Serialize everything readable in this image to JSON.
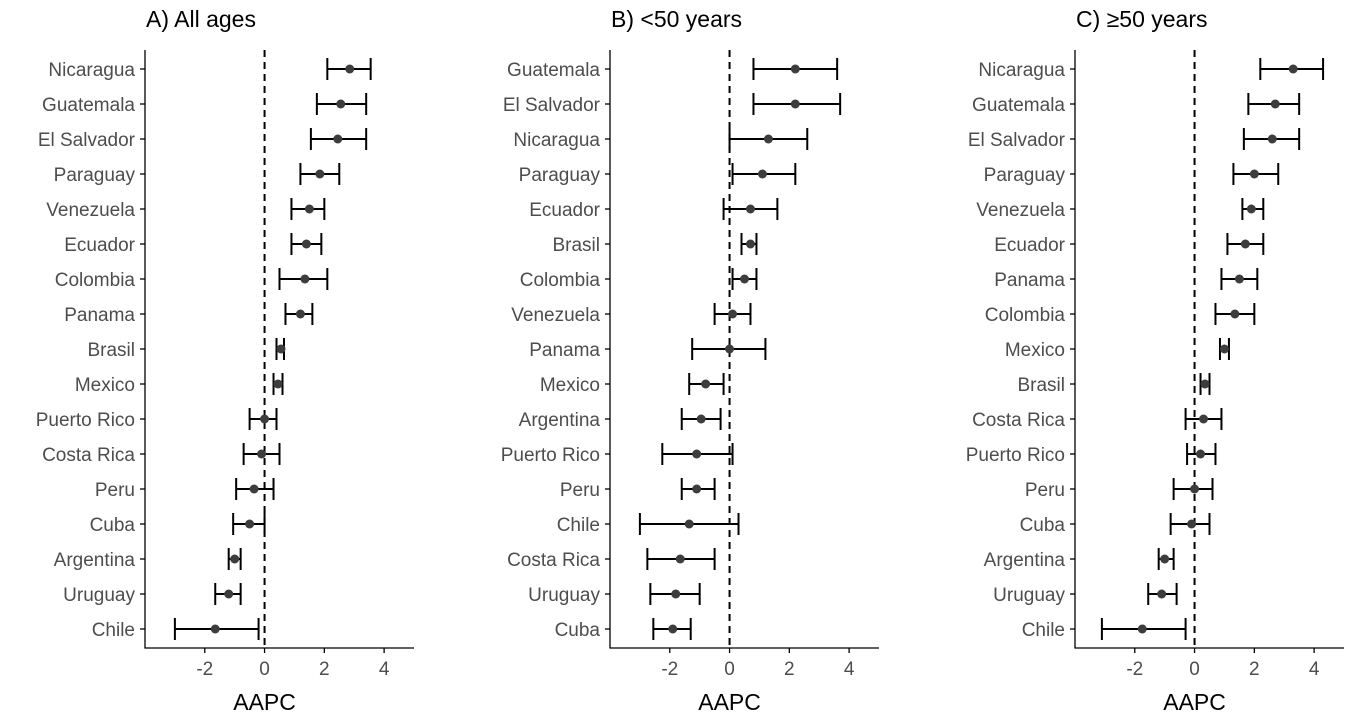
{
  "chart_data": [
    {
      "type": "forest",
      "title": "A) All ages",
      "xlabel": "AAPC",
      "xlim": [
        -4,
        5
      ],
      "xticks": [
        -2,
        0,
        2,
        4
      ],
      "tick_labels": [
        "-2",
        "0",
        "2",
        "4"
      ],
      "reference_line": 0,
      "categories": [
        "Nicaragua",
        "Guatemala",
        "El Salvador",
        "Paraguay",
        "Venezuela",
        "Ecuador",
        "Colombia",
        "Panama",
        "Brasil",
        "Mexico",
        "Puerto Rico",
        "Costa Rica",
        "Peru",
        "Cuba",
        "Argentina",
        "Uruguay",
        "Chile"
      ],
      "estimates": [
        2.85,
        2.55,
        2.45,
        1.85,
        1.5,
        1.4,
        1.35,
        1.2,
        0.55,
        0.45,
        0.0,
        -0.1,
        -0.35,
        -0.5,
        -1.0,
        -1.2,
        -1.65
      ],
      "lower": [
        2.1,
        1.75,
        1.55,
        1.2,
        0.9,
        0.9,
        0.5,
        0.7,
        0.4,
        0.3,
        -0.5,
        -0.7,
        -0.95,
        -1.05,
        -1.2,
        -1.65,
        -3.0
      ],
      "upper": [
        3.55,
        3.4,
        3.4,
        2.5,
        2.0,
        1.9,
        2.1,
        1.6,
        0.65,
        0.6,
        0.4,
        0.5,
        0.3,
        0.0,
        -0.8,
        -0.8,
        -0.2
      ]
    },
    {
      "type": "forest",
      "title": "B) <50 years",
      "xlabel": "AAPC",
      "xlim": [
        -4,
        5
      ],
      "xticks": [
        -2,
        0,
        2,
        4
      ],
      "tick_labels": [
        "-2",
        "0",
        "2",
        "4"
      ],
      "reference_line": 0,
      "categories": [
        "Guatemala",
        "El Salvador",
        "Nicaragua",
        "Paraguay",
        "Ecuador",
        "Brasil",
        "Colombia",
        "Venezuela",
        "Panama",
        "Mexico",
        "Argentina",
        "Puerto Rico",
        "Peru",
        "Chile",
        "Costa Rica",
        "Uruguay",
        "Cuba"
      ],
      "estimates": [
        2.2,
        2.2,
        1.3,
        1.1,
        0.7,
        0.7,
        0.5,
        0.1,
        0.0,
        -0.8,
        -0.95,
        -1.1,
        -1.1,
        -1.35,
        -1.65,
        -1.8,
        -1.9
      ],
      "lower": [
        0.8,
        0.8,
        0.0,
        0.1,
        -0.2,
        0.4,
        0.1,
        -0.5,
        -1.25,
        -1.35,
        -1.6,
        -2.25,
        -1.6,
        -3.0,
        -2.75,
        -2.65,
        -2.55
      ],
      "upper": [
        3.6,
        3.7,
        2.6,
        2.2,
        1.6,
        0.9,
        0.9,
        0.7,
        1.2,
        -0.2,
        -0.3,
        0.1,
        -0.5,
        0.3,
        -0.5,
        -1.0,
        -1.3
      ]
    },
    {
      "type": "forest",
      "title": "C) ≥50 years",
      "xlabel": "AAPC",
      "xlim": [
        -4,
        5
      ],
      "xticks": [
        -2,
        0,
        2,
        4
      ],
      "tick_labels": [
        "-2",
        "0",
        "2",
        "4"
      ],
      "reference_line": 0,
      "categories": [
        "Nicaragua",
        "Guatemala",
        "El Salvador",
        "Paraguay",
        "Venezuela",
        "Ecuador",
        "Panama",
        "Colombia",
        "Mexico",
        "Brasil",
        "Costa Rica",
        "Puerto Rico",
        "Peru",
        "Cuba",
        "Argentina",
        "Uruguay",
        "Chile"
      ],
      "estimates": [
        3.3,
        2.7,
        2.6,
        2.0,
        1.9,
        1.7,
        1.5,
        1.35,
        1.0,
        0.35,
        0.3,
        0.2,
        0.0,
        -0.1,
        -1.0,
        -1.1,
        -1.75
      ],
      "lower": [
        2.2,
        1.8,
        1.65,
        1.3,
        1.6,
        1.1,
        0.9,
        0.7,
        0.85,
        0.2,
        -0.3,
        -0.25,
        -0.7,
        -0.8,
        -1.2,
        -1.55,
        -3.1
      ],
      "upper": [
        4.3,
        3.5,
        3.5,
        2.8,
        2.3,
        2.3,
        2.1,
        2.0,
        1.15,
        0.5,
        0.9,
        0.7,
        0.6,
        0.5,
        -0.7,
        -0.6,
        -0.3
      ]
    }
  ],
  "colors": {
    "point": "#3d3d3d",
    "line": "#000000",
    "axis": "#000000",
    "label": "#4d4d4d"
  }
}
